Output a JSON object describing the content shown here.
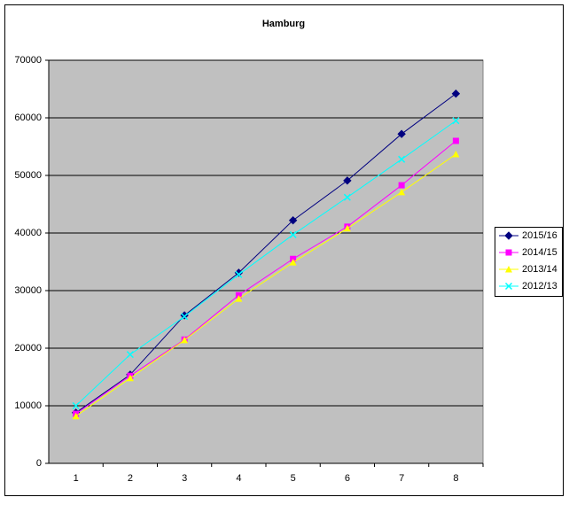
{
  "chart_data": {
    "type": "line",
    "title": "Hamburg",
    "categories": [
      "1",
      "2",
      "3",
      "4",
      "5",
      "6",
      "7",
      "8"
    ],
    "series": [
      {
        "name": "2015/16",
        "color": "#000080",
        "marker": "diamond",
        "values": [
          8800,
          15400,
          25700,
          33100,
          42200,
          49100,
          57200,
          64200
        ]
      },
      {
        "name": "2014/15",
        "color": "#ff00ff",
        "marker": "square",
        "values": [
          8600,
          15200,
          21500,
          29200,
          35500,
          41100,
          48300,
          56000
        ]
      },
      {
        "name": "2013/14",
        "color": "#ffff00",
        "marker": "triangle",
        "values": [
          8200,
          14800,
          21400,
          28600,
          34900,
          40800,
          47100,
          53700
        ]
      },
      {
        "name": "2012/13",
        "color": "#00ffff",
        "marker": "x",
        "values": [
          10000,
          18900,
          25500,
          32800,
          39700,
          46200,
          52800,
          59500
        ]
      }
    ],
    "ylim": [
      0,
      70000
    ],
    "yticks": [
      0,
      10000,
      20000,
      30000,
      40000,
      50000,
      60000,
      70000
    ],
    "grid": true,
    "legend": "right"
  }
}
